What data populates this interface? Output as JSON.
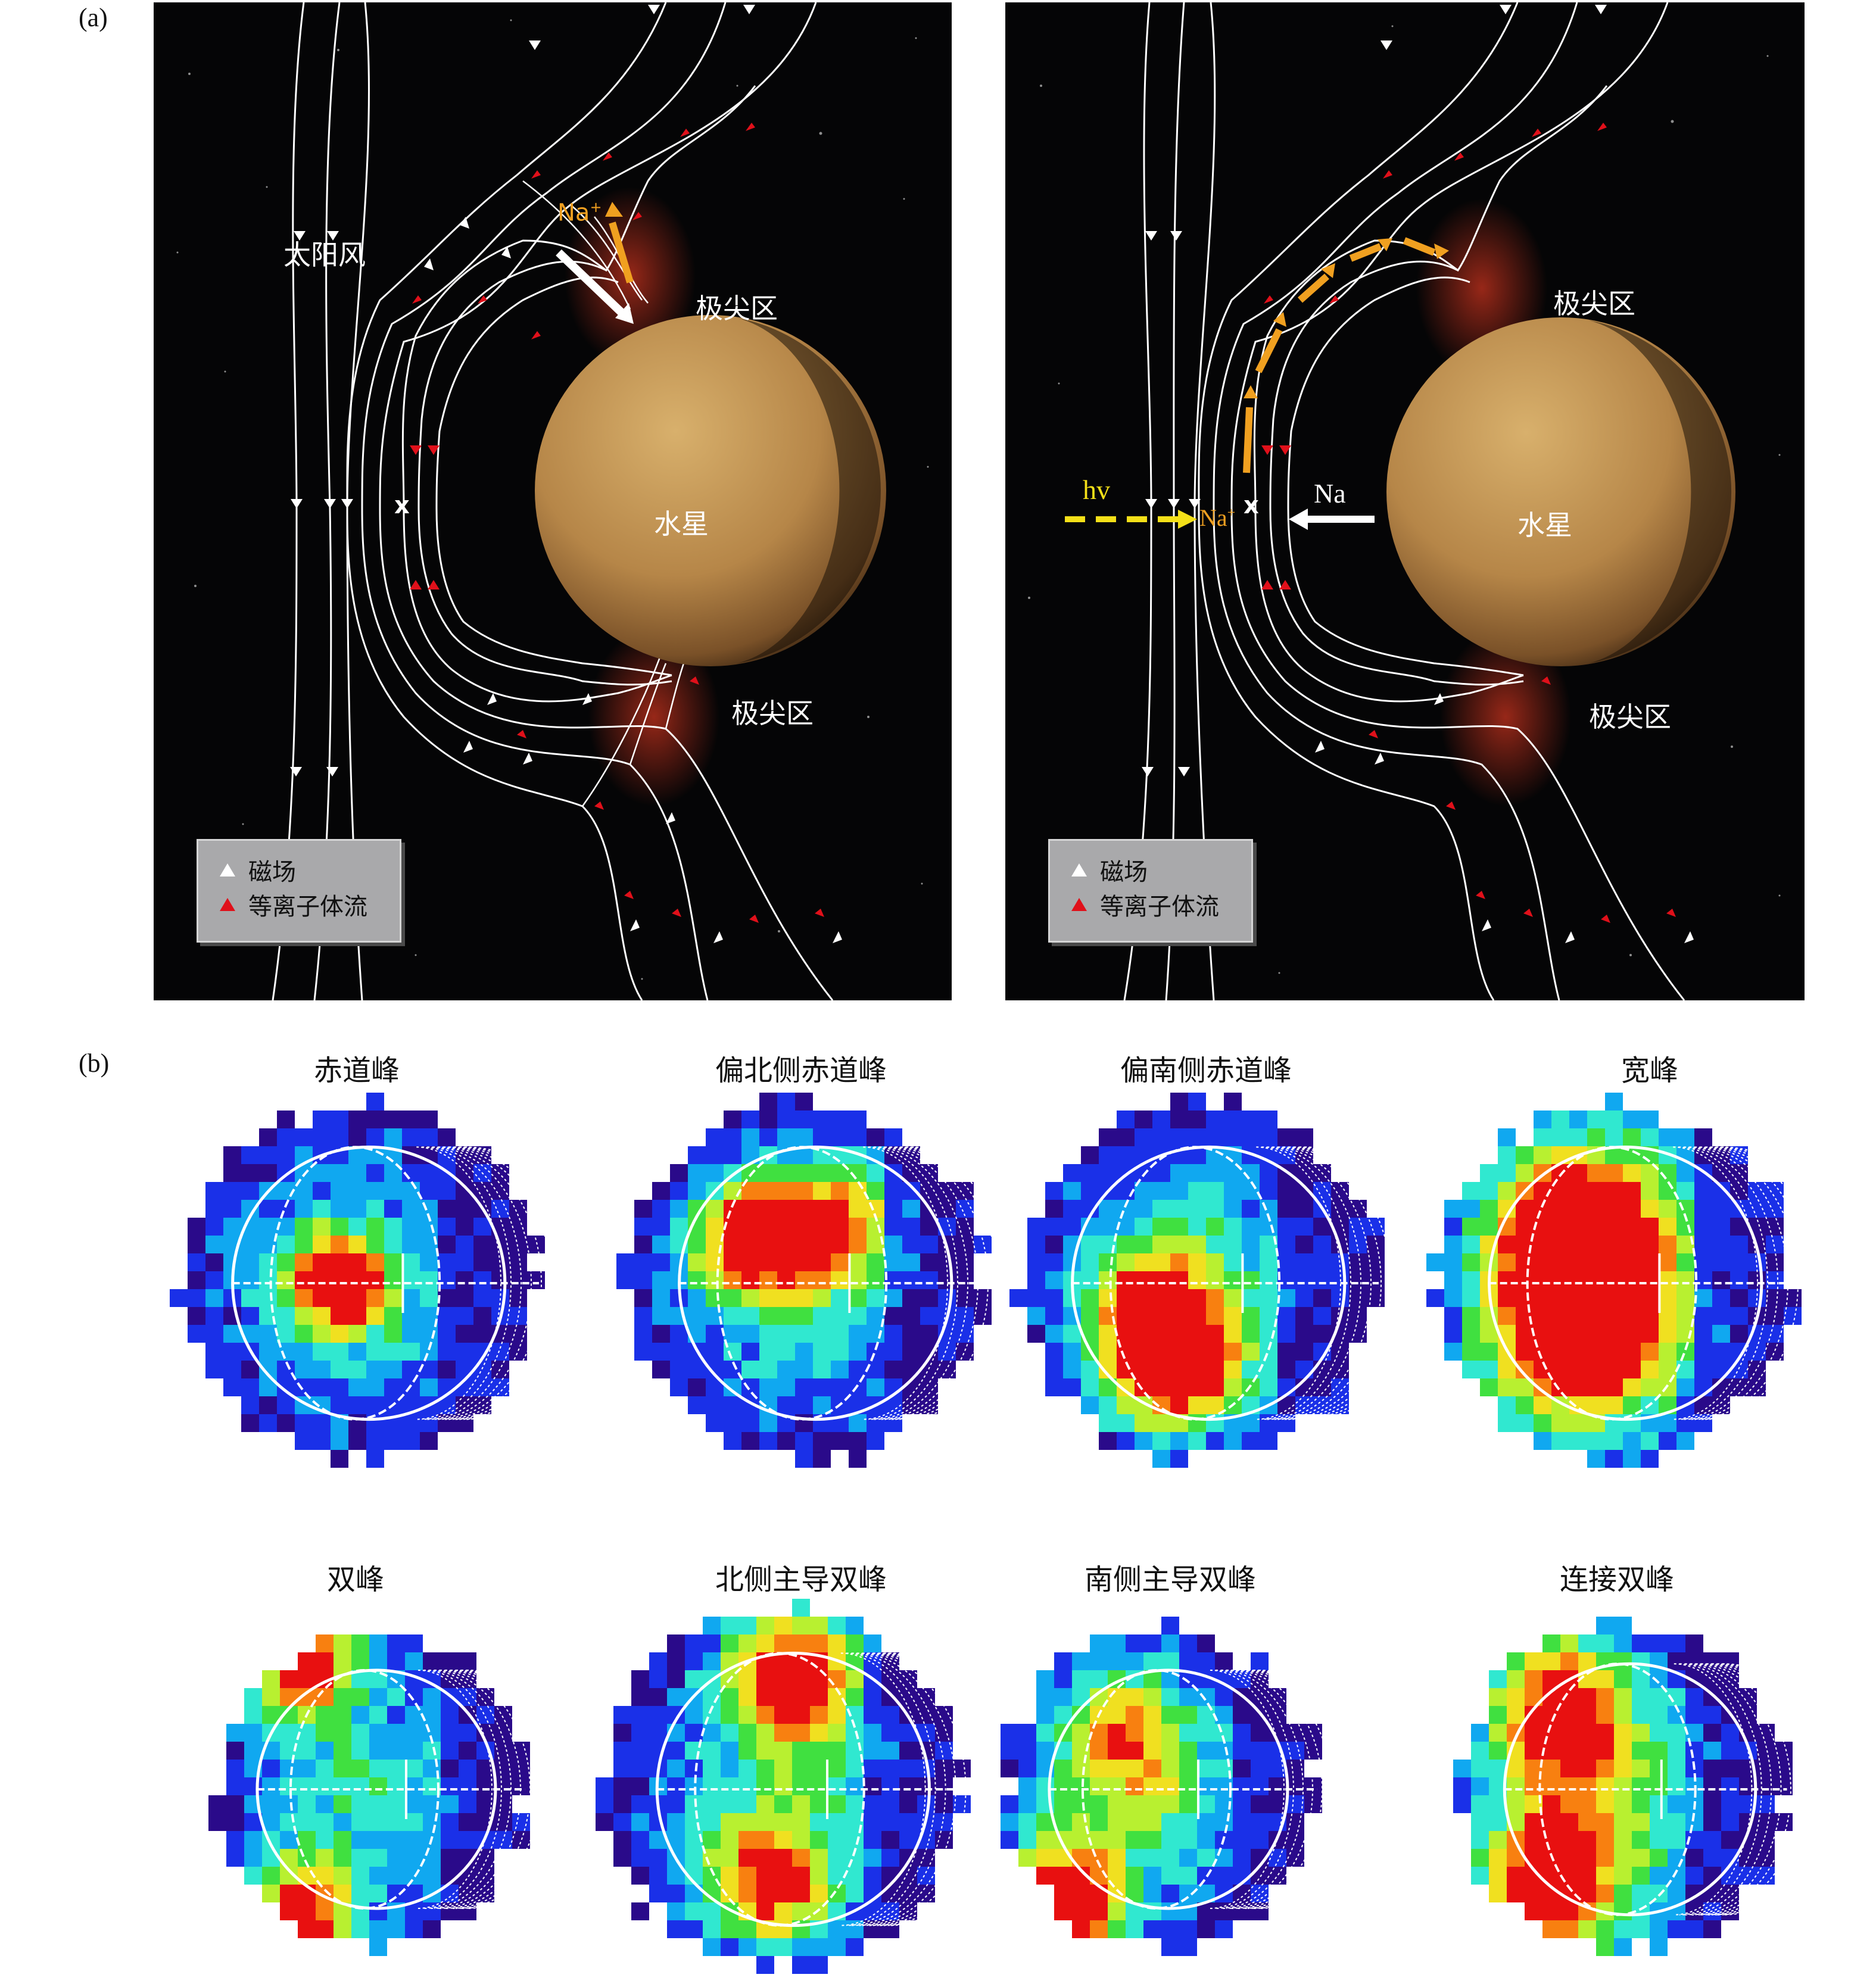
{
  "panel_a": {
    "label": "(a)",
    "left": {
      "solar_wind": "太阳风",
      "planet": "水星",
      "cusp_north": "极尖区",
      "cusp_south": "极尖区",
      "ion": "Na",
      "ion_sup": "+",
      "x_mark": "x"
    },
    "right": {
      "planet": "水星",
      "cusp_north": "极尖区",
      "cusp_south": "极尖区",
      "photon": "hv",
      "neutral": "Na",
      "ion": "Na",
      "ion_sup": "+",
      "x_mark": "x"
    },
    "legend": {
      "magnetic_field": "磁场",
      "plasma_flow": "等离子体流"
    },
    "colors": {
      "background": "#050506",
      "field_line": "#ffffff",
      "plasma_arrow": "#e0101a",
      "ion_arrow": "#f0a020",
      "photon_arrow": "#f4e018",
      "planet": "#b88a4c"
    }
  },
  "panel_b": {
    "label": "(b)",
    "maps": [
      {
        "title": "赤道峰"
      },
      {
        "title": "偏北侧赤道峰"
      },
      {
        "title": "偏南侧赤道峰"
      },
      {
        "title": "宽峰"
      },
      {
        "title": "双峰"
      },
      {
        "title": "北侧主导双峰"
      },
      {
        "title": "南侧主导双峰"
      },
      {
        "title": "连接双峰"
      }
    ],
    "colormap": [
      "#2a0a8a",
      "#1a30e8",
      "#10a8f0",
      "#30e8d0",
      "#40e040",
      "#b8f030",
      "#f0e020",
      "#f88010",
      "#e81010"
    ]
  }
}
